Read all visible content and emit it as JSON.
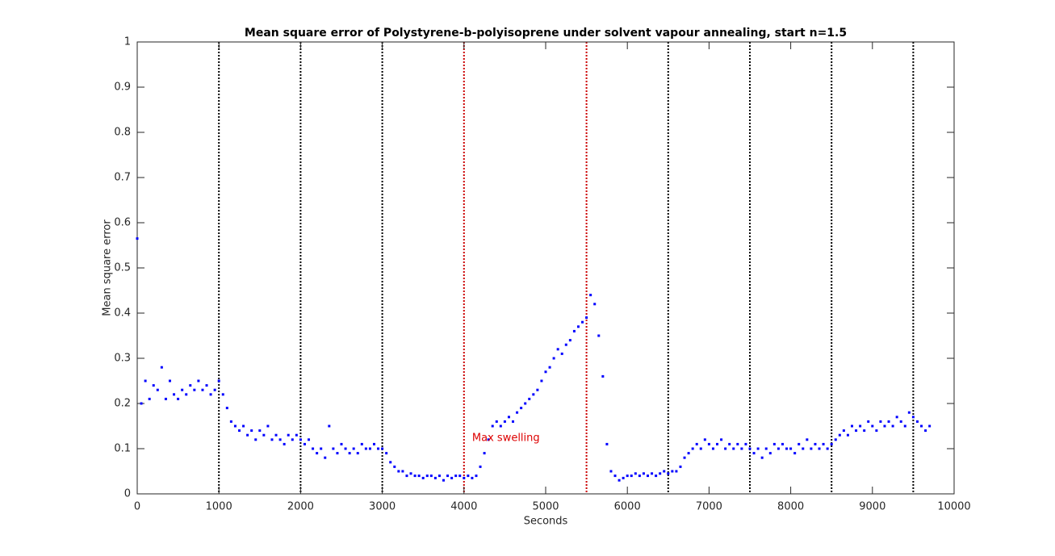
{
  "chart_data": {
    "type": "scatter",
    "title": "Mean square error of Polystyrene-b-polyisoprene under solvent vapour annealing, start n=1.5",
    "xlabel": "Seconds",
    "ylabel": "Mean square error",
    "xlim": [
      0,
      10000
    ],
    "ylim": [
      0,
      1
    ],
    "xticks": [
      0,
      1000,
      2000,
      3000,
      4000,
      5000,
      6000,
      7000,
      8000,
      9000,
      10000
    ],
    "yticks": [
      0,
      0.1,
      0.2,
      0.3,
      0.4,
      0.5,
      0.6,
      0.7,
      0.8,
      0.9,
      1
    ],
    "grid": false,
    "color": "#0000ff",
    "vlines": [
      {
        "x": 1000,
        "color": "#000000"
      },
      {
        "x": 2000,
        "color": "#000000"
      },
      {
        "x": 3000,
        "color": "#000000"
      },
      {
        "x": 4000,
        "color": "#cc0000"
      },
      {
        "x": 5500,
        "color": "#cc0000"
      },
      {
        "x": 6500,
        "color": "#000000"
      },
      {
        "x": 7500,
        "color": "#000000"
      },
      {
        "x": 8500,
        "color": "#000000"
      },
      {
        "x": 9500,
        "color": "#000000"
      }
    ],
    "annotations": [
      {
        "text": "Max swelling",
        "x": 4100,
        "y": 0.1,
        "color": "#dd0000"
      }
    ],
    "x": [
      0,
      50,
      100,
      150,
      200,
      250,
      300,
      350,
      400,
      450,
      500,
      550,
      600,
      650,
      700,
      750,
      800,
      850,
      900,
      950,
      1000,
      1050,
      1100,
      1150,
      1200,
      1250,
      1300,
      1350,
      1400,
      1450,
      1500,
      1550,
      1600,
      1650,
      1700,
      1750,
      1800,
      1850,
      1900,
      1950,
      2000,
      2050,
      2100,
      2150,
      2200,
      2250,
      2300,
      2350,
      2400,
      2450,
      2500,
      2550,
      2600,
      2650,
      2700,
      2750,
      2800,
      2850,
      2900,
      2950,
      3000,
      3050,
      3100,
      3150,
      3200,
      3250,
      3300,
      3350,
      3400,
      3450,
      3500,
      3550,
      3600,
      3650,
      3700,
      3750,
      3800,
      3850,
      3900,
      3950,
      4000,
      4050,
      4100,
      4150,
      4200,
      4250,
      4300,
      4350,
      4400,
      4450,
      4500,
      4550,
      4600,
      4650,
      4700,
      4750,
      4800,
      4850,
      4900,
      4950,
      5000,
      5050,
      5100,
      5150,
      5200,
      5250,
      5300,
      5350,
      5400,
      5450,
      5500,
      5550,
      5600,
      5650,
      5700,
      5750,
      5800,
      5850,
      5900,
      5950,
      6000,
      6050,
      6100,
      6150,
      6200,
      6250,
      6300,
      6350,
      6400,
      6450,
      6500,
      6550,
      6600,
      6650,
      6700,
      6750,
      6800,
      6850,
      6900,
      6950,
      7000,
      7050,
      7100,
      7150,
      7200,
      7250,
      7300,
      7350,
      7400,
      7450,
      7500,
      7550,
      7600,
      7650,
      7700,
      7750,
      7800,
      7850,
      7900,
      7950,
      8000,
      8050,
      8100,
      8150,
      8200,
      8250,
      8300,
      8350,
      8400,
      8450,
      8500,
      8550,
      8600,
      8650,
      8700,
      8750,
      8800,
      8850,
      8900,
      8950,
      9000,
      9050,
      9100,
      9150,
      9200,
      9250,
      9300,
      9350,
      9400,
      9450,
      9500,
      9550,
      9600,
      9650,
      9700
    ],
    "values": [
      0.565,
      0.2,
      0.25,
      0.21,
      0.24,
      0.23,
      0.28,
      0.21,
      0.25,
      0.22,
      0.21,
      0.23,
      0.22,
      0.24,
      0.23,
      0.25,
      0.23,
      0.24,
      0.22,
      0.23,
      0.25,
      0.22,
      0.19,
      0.16,
      0.15,
      0.14,
      0.15,
      0.13,
      0.14,
      0.12,
      0.14,
      0.13,
      0.15,
      0.12,
      0.13,
      0.12,
      0.11,
      0.13,
      0.12,
      0.13,
      0.12,
      0.11,
      0.12,
      0.1,
      0.09,
      0.1,
      0.08,
      0.15,
      0.1,
      0.09,
      0.11,
      0.1,
      0.09,
      0.1,
      0.09,
      0.11,
      0.1,
      0.1,
      0.11,
      0.1,
      0.1,
      0.09,
      0.07,
      0.06,
      0.05,
      0.05,
      0.04,
      0.045,
      0.04,
      0.04,
      0.035,
      0.04,
      0.04,
      0.035,
      0.04,
      0.03,
      0.04,
      0.035,
      0.04,
      0.04,
      0.035,
      0.04,
      0.035,
      0.04,
      0.06,
      0.09,
      0.12,
      0.15,
      0.16,
      0.15,
      0.16,
      0.17,
      0.16,
      0.18,
      0.19,
      0.2,
      0.21,
      0.22,
      0.23,
      0.25,
      0.27,
      0.28,
      0.3,
      0.32,
      0.31,
      0.33,
      0.34,
      0.36,
      0.37,
      0.38,
      0.39,
      0.44,
      0.42,
      0.35,
      0.26,
      0.11,
      0.05,
      0.04,
      0.03,
      0.035,
      0.04,
      0.04,
      0.045,
      0.04,
      0.045,
      0.04,
      0.045,
      0.04,
      0.045,
      0.05,
      0.045,
      0.05,
      0.05,
      0.06,
      0.08,
      0.09,
      0.1,
      0.11,
      0.1,
      0.12,
      0.11,
      0.1,
      0.11,
      0.12,
      0.1,
      0.11,
      0.1,
      0.11,
      0.1,
      0.11,
      0.1,
      0.09,
      0.1,
      0.08,
      0.1,
      0.09,
      0.11,
      0.1,
      0.11,
      0.1,
      0.1,
      0.09,
      0.11,
      0.1,
      0.12,
      0.1,
      0.11,
      0.1,
      0.11,
      0.1,
      0.11,
      0.12,
      0.13,
      0.14,
      0.13,
      0.15,
      0.14,
      0.15,
      0.14,
      0.16,
      0.15,
      0.14,
      0.16,
      0.15,
      0.16,
      0.15,
      0.17,
      0.16,
      0.15,
      0.18,
      0.17,
      0.16,
      0.15,
      0.14,
      0.15
    ]
  }
}
